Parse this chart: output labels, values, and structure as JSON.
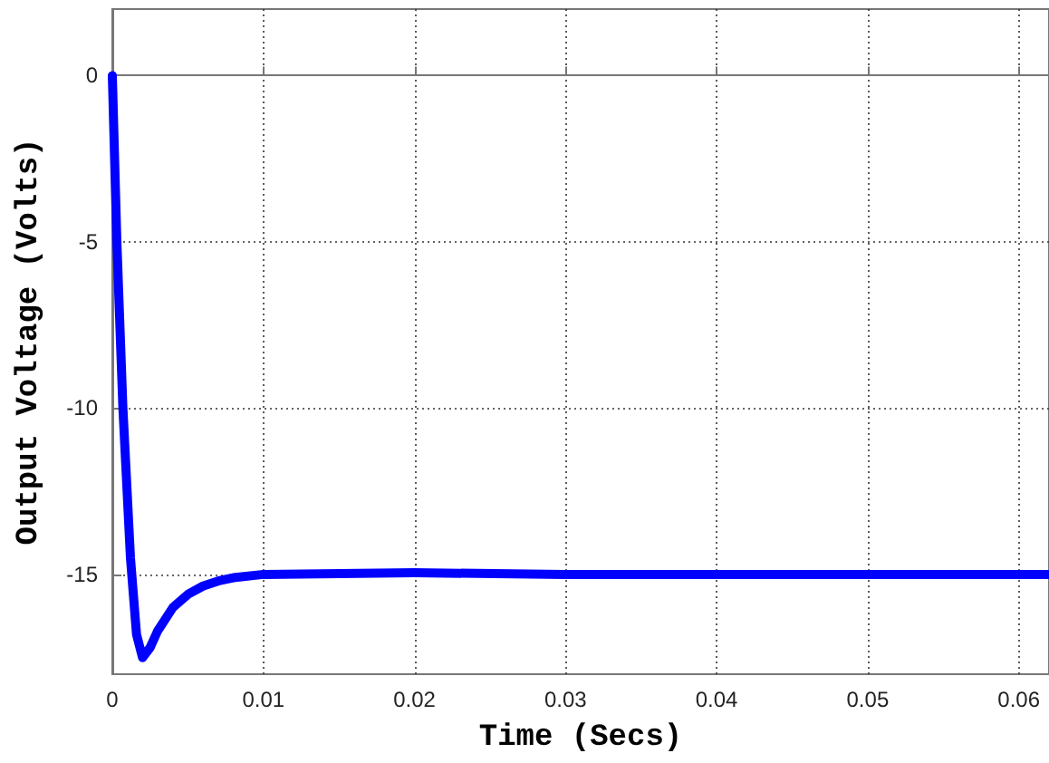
{
  "chart_data": {
    "type": "line",
    "xlabel": "Time (Secs)",
    "ylabel": "Output Voltage (Volts)",
    "x": [
      0,
      0.0003,
      0.0007,
      0.0012,
      0.0016,
      0.002,
      0.0025,
      0.003,
      0.004,
      0.005,
      0.006,
      0.007,
      0.008,
      0.01,
      0.02,
      0.03,
      0.04,
      0.05,
      0.062
    ],
    "series": [
      {
        "color": "#0000ff",
        "values": [
          0,
          -5,
          -10,
          -14.5,
          -16.8,
          -17.5,
          -17.2,
          -16.7,
          -16,
          -15.6,
          -15.35,
          -15.2,
          -15.1,
          -15,
          -14.95,
          -15,
          -15,
          -15,
          -15
        ]
      }
    ],
    "xlim": [
      0,
      0.062
    ],
    "xticks": [
      0,
      0.01,
      0.02,
      0.03,
      0.04,
      0.05,
      0.06
    ],
    "ylim": [
      -18,
      2
    ],
    "yticks": [
      -15,
      -10,
      -5,
      0
    ],
    "grid": true,
    "marker": "none",
    "line_style": "solid"
  }
}
